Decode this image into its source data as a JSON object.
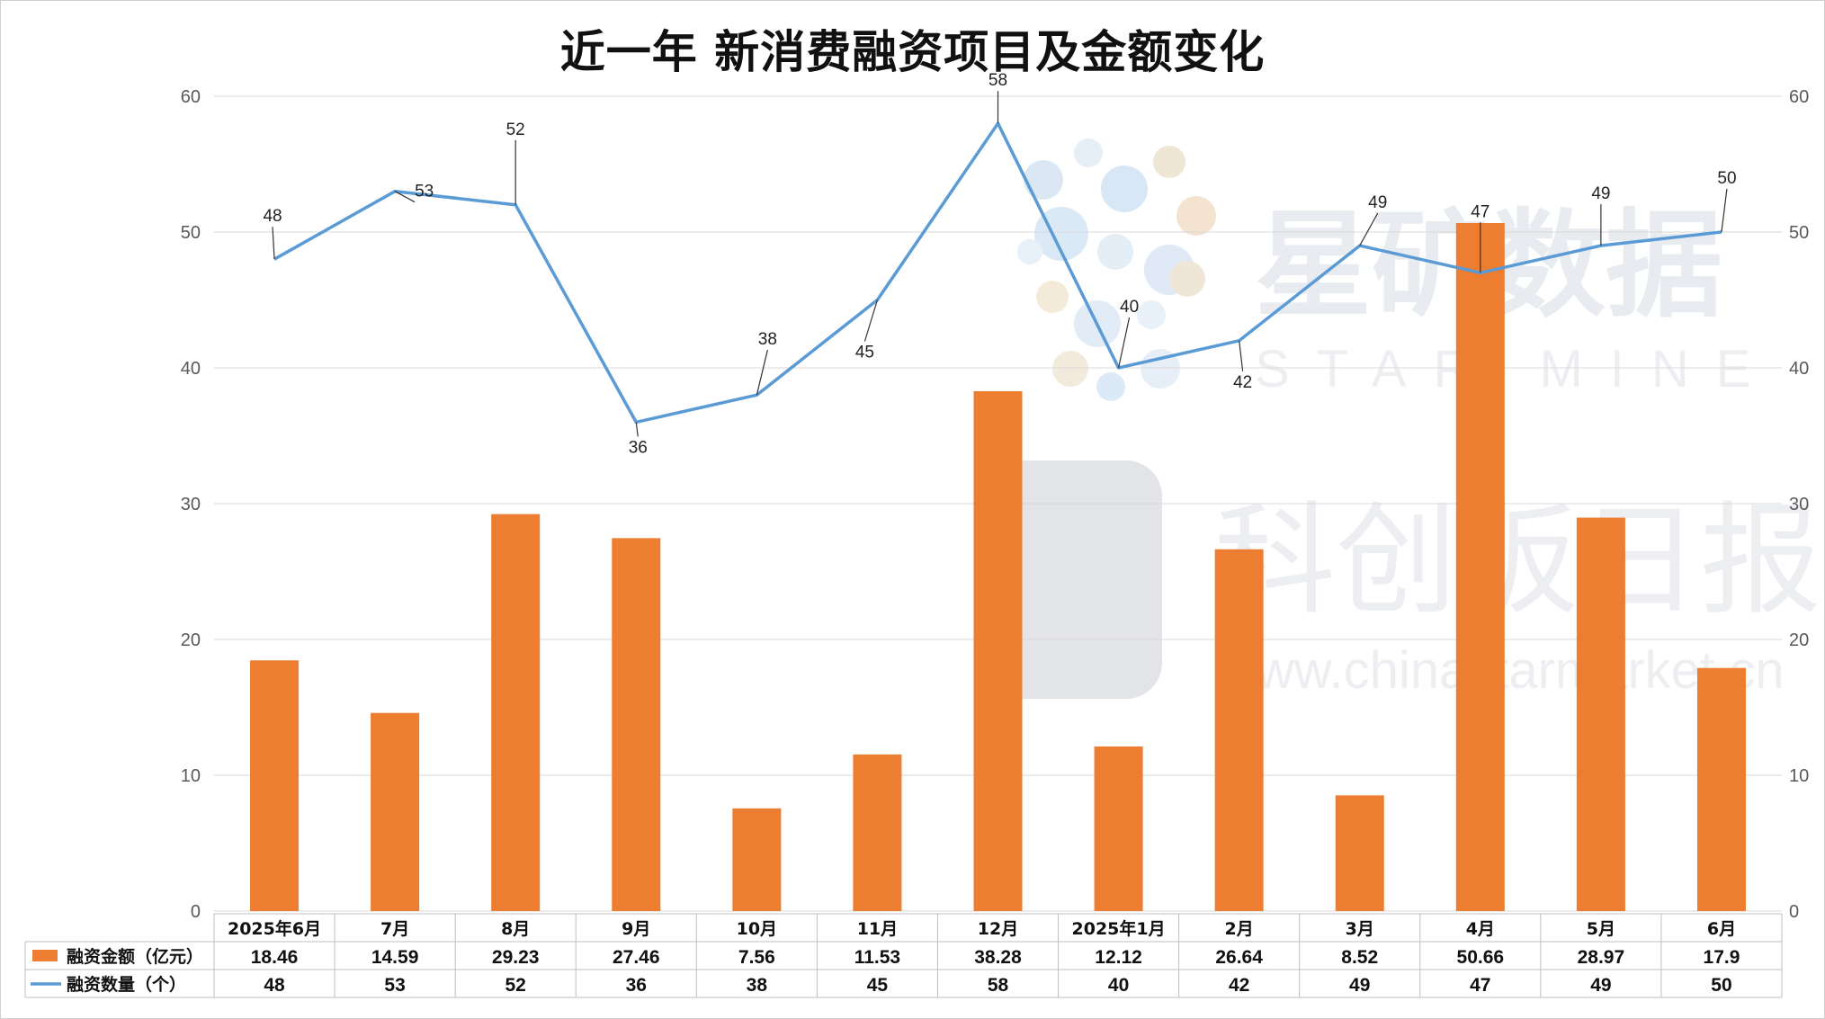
{
  "chart_data": {
    "type": "bar",
    "title": "近一年 新消费融资项目及金额变化",
    "categories": [
      "2025年6月",
      "7月",
      "8月",
      "9月",
      "10月",
      "11月",
      "12月",
      "2025年1月",
      "2月",
      "3月",
      "4月",
      "5月",
      "6月"
    ],
    "series": [
      {
        "name": "融资金额（亿元）",
        "type": "bar",
        "axis": "left",
        "color": "#ED7D31",
        "values": [
          18.46,
          14.59,
          29.23,
          27.46,
          7.56,
          11.53,
          38.28,
          12.12,
          26.64,
          8.52,
          50.66,
          28.97,
          17.9
        ],
        "labels": [
          "18.46",
          "14.59",
          "29.23",
          "27.46",
          "7.56",
          "11.53",
          "38.28",
          "12.12",
          "26.64",
          "8.52",
          "50.66",
          "28.97",
          "17.9"
        ]
      },
      {
        "name": "融资数量（个）",
        "type": "line",
        "axis": "right",
        "color": "#5B9BD5",
        "values": [
          48,
          53,
          52,
          36,
          38,
          45,
          58,
          40,
          42,
          49,
          47,
          49,
          50
        ],
        "labels": [
          "48",
          "53",
          "52",
          "36",
          "38",
          "45",
          "58",
          "40",
          "42",
          "49",
          "47",
          "49",
          "50"
        ]
      }
    ],
    "ylim": [
      0,
      60
    ],
    "y2lim": [
      0,
      60
    ],
    "yticks": [
      "0",
      "10",
      "20",
      "30",
      "40",
      "50",
      "60"
    ],
    "grid": true,
    "legend": "data-table-bottom"
  },
  "watermark": {
    "brand_cn": "星矿数据",
    "brand_en": "STAR MINE",
    "site_cn": "科创板日报",
    "site_url": "www.chinastarmarket.cn"
  }
}
